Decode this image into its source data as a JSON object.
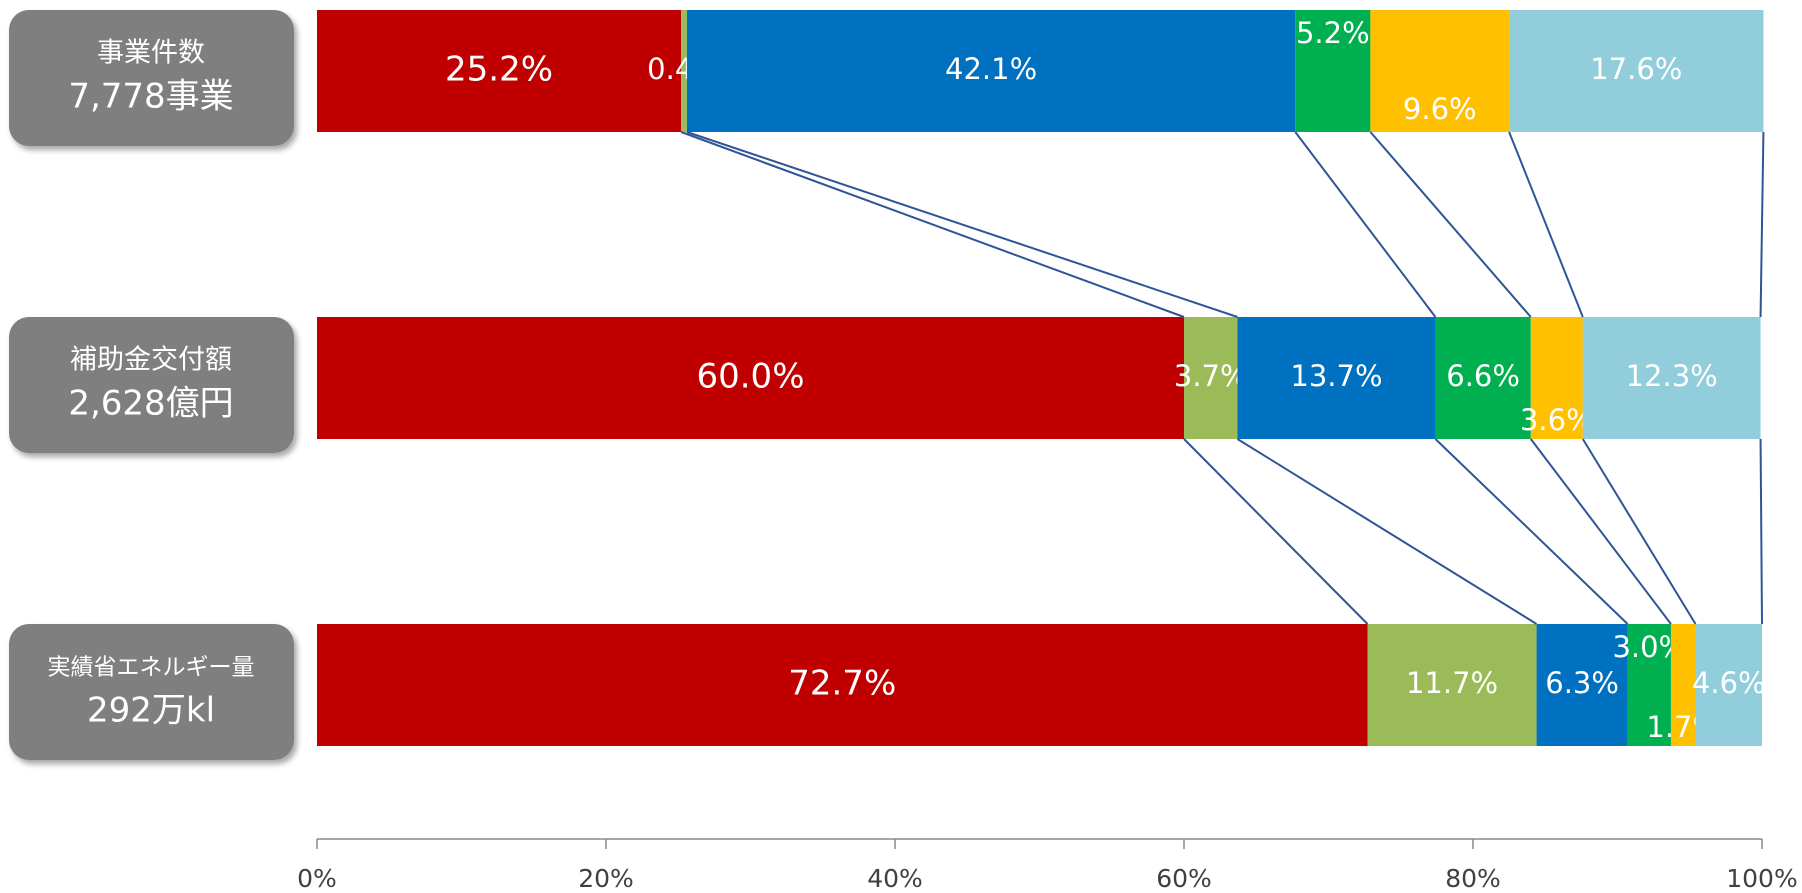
{
  "chart_data": {
    "type": "stacked-bar-horizontal",
    "categories": [
      [
        "事業件数",
        "7,778事業"
      ],
      [
        "補助金交付額",
        "2,628億円"
      ],
      [
        "実績省エネルギー量",
        "292万kl"
      ]
    ],
    "series": [
      {
        "color": "#c00000",
        "values": [
          25.2,
          60.0,
          72.7
        ],
        "value_labels": [
          "25.2%",
          "60.0%",
          "72.7%"
        ]
      },
      {
        "color": "#9bbb59",
        "values": [
          0.4,
          3.7,
          11.7
        ],
        "value_labels": [
          "0.4%",
          "3.7%",
          "11.7%"
        ]
      },
      {
        "color": "#0070c0",
        "values": [
          42.1,
          13.7,
          6.3
        ],
        "value_labels": [
          "42.1%",
          "13.7%",
          "6.3%"
        ]
      },
      {
        "color": "#00b050",
        "values": [
          5.2,
          6.6,
          3.0
        ],
        "value_labels": [
          "5.2%",
          "6.6%",
          "3.0%"
        ]
      },
      {
        "color": "#ffc000",
        "values": [
          9.6,
          3.6,
          1.7
        ],
        "value_labels": [
          "9.6%",
          "3.6%",
          "1.7%"
        ]
      },
      {
        "color": "#92cddc",
        "values": [
          17.6,
          12.3,
          4.6
        ],
        "value_labels": [
          "17.6%",
          "12.3%",
          "4.6%"
        ]
      }
    ],
    "xlim": [
      0,
      100
    ],
    "xticks": [
      {
        "value": 0,
        "label": "0%"
      },
      {
        "value": 20,
        "label": "20%"
      },
      {
        "value": 40,
        "label": "40%"
      },
      {
        "value": 60,
        "label": "60%"
      },
      {
        "value": 80,
        "label": "80%"
      },
      {
        "value": 100,
        "label": "100%"
      }
    ]
  }
}
